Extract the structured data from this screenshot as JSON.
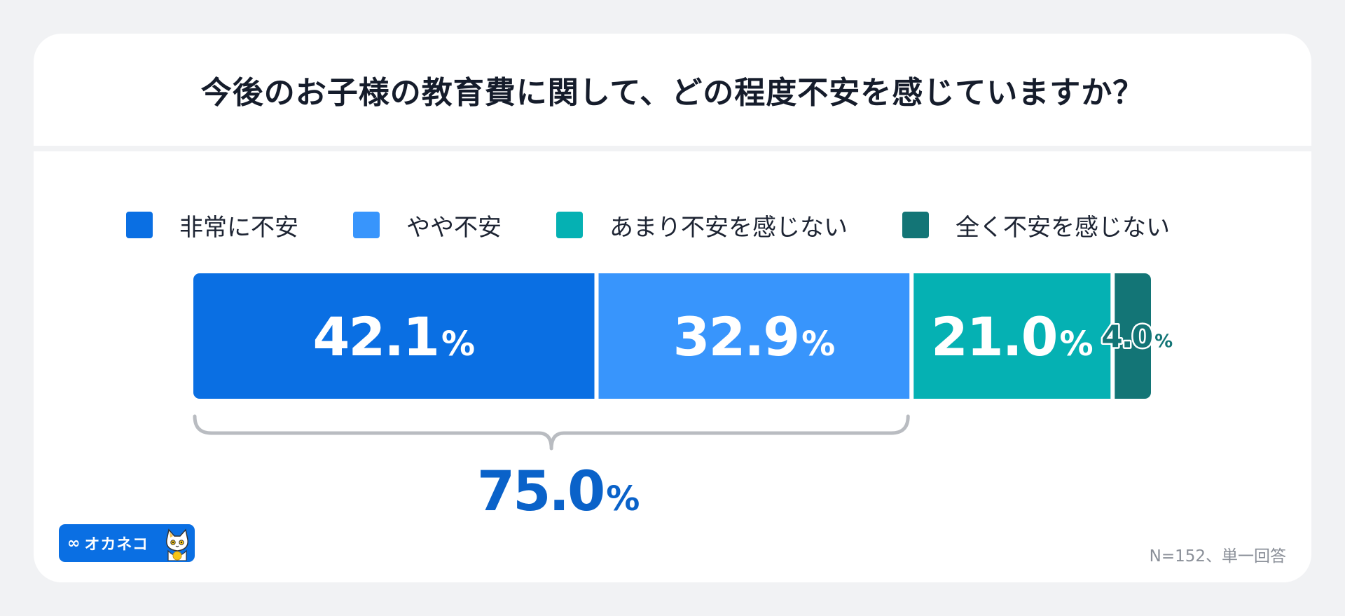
{
  "title": "今後のお子様の教育費に関して、どの程度不安を感じていますか？",
  "legend": [
    {
      "label": "非常に不安",
      "color": "#0a6fe3"
    },
    {
      "label": "やや不安",
      "color": "#3895fc"
    },
    {
      "label": "あまり不安を感じない",
      "color": "#05b1b3"
    },
    {
      "label": "全く不安を感じない",
      "color": "#137576"
    }
  ],
  "chart_data": {
    "type": "bar",
    "orientation": "horizontal-stacked",
    "title": "今後のお子様の教育費に関して、どの程度不安を感じていますか？",
    "categories": [
      "非常に不安",
      "やや不安",
      "あまり不安を感じない",
      "全く不安を感じない"
    ],
    "values": [
      42.1,
      32.9,
      21.0,
      4.0
    ],
    "value_labels": [
      {
        "num": "42.1",
        "unit": "%"
      },
      {
        "num": "32.9",
        "unit": "%"
      },
      {
        "num": "21.0",
        "unit": "%"
      },
      {
        "num": "4.0",
        "unit": "%"
      }
    ],
    "colors": [
      "#0a6fe3",
      "#3895fc",
      "#05b1b3",
      "#137576"
    ],
    "bracket": {
      "covers": [
        "非常に不安",
        "やや不安"
      ],
      "num": "75.0",
      "unit": "%",
      "color": "#0a62c9"
    },
    "legend_position": "top"
  },
  "logo": {
    "mark": "∞",
    "text": "オカネコ",
    "color": "#0a6fe3"
  },
  "footnote": "N=152、単一回答"
}
